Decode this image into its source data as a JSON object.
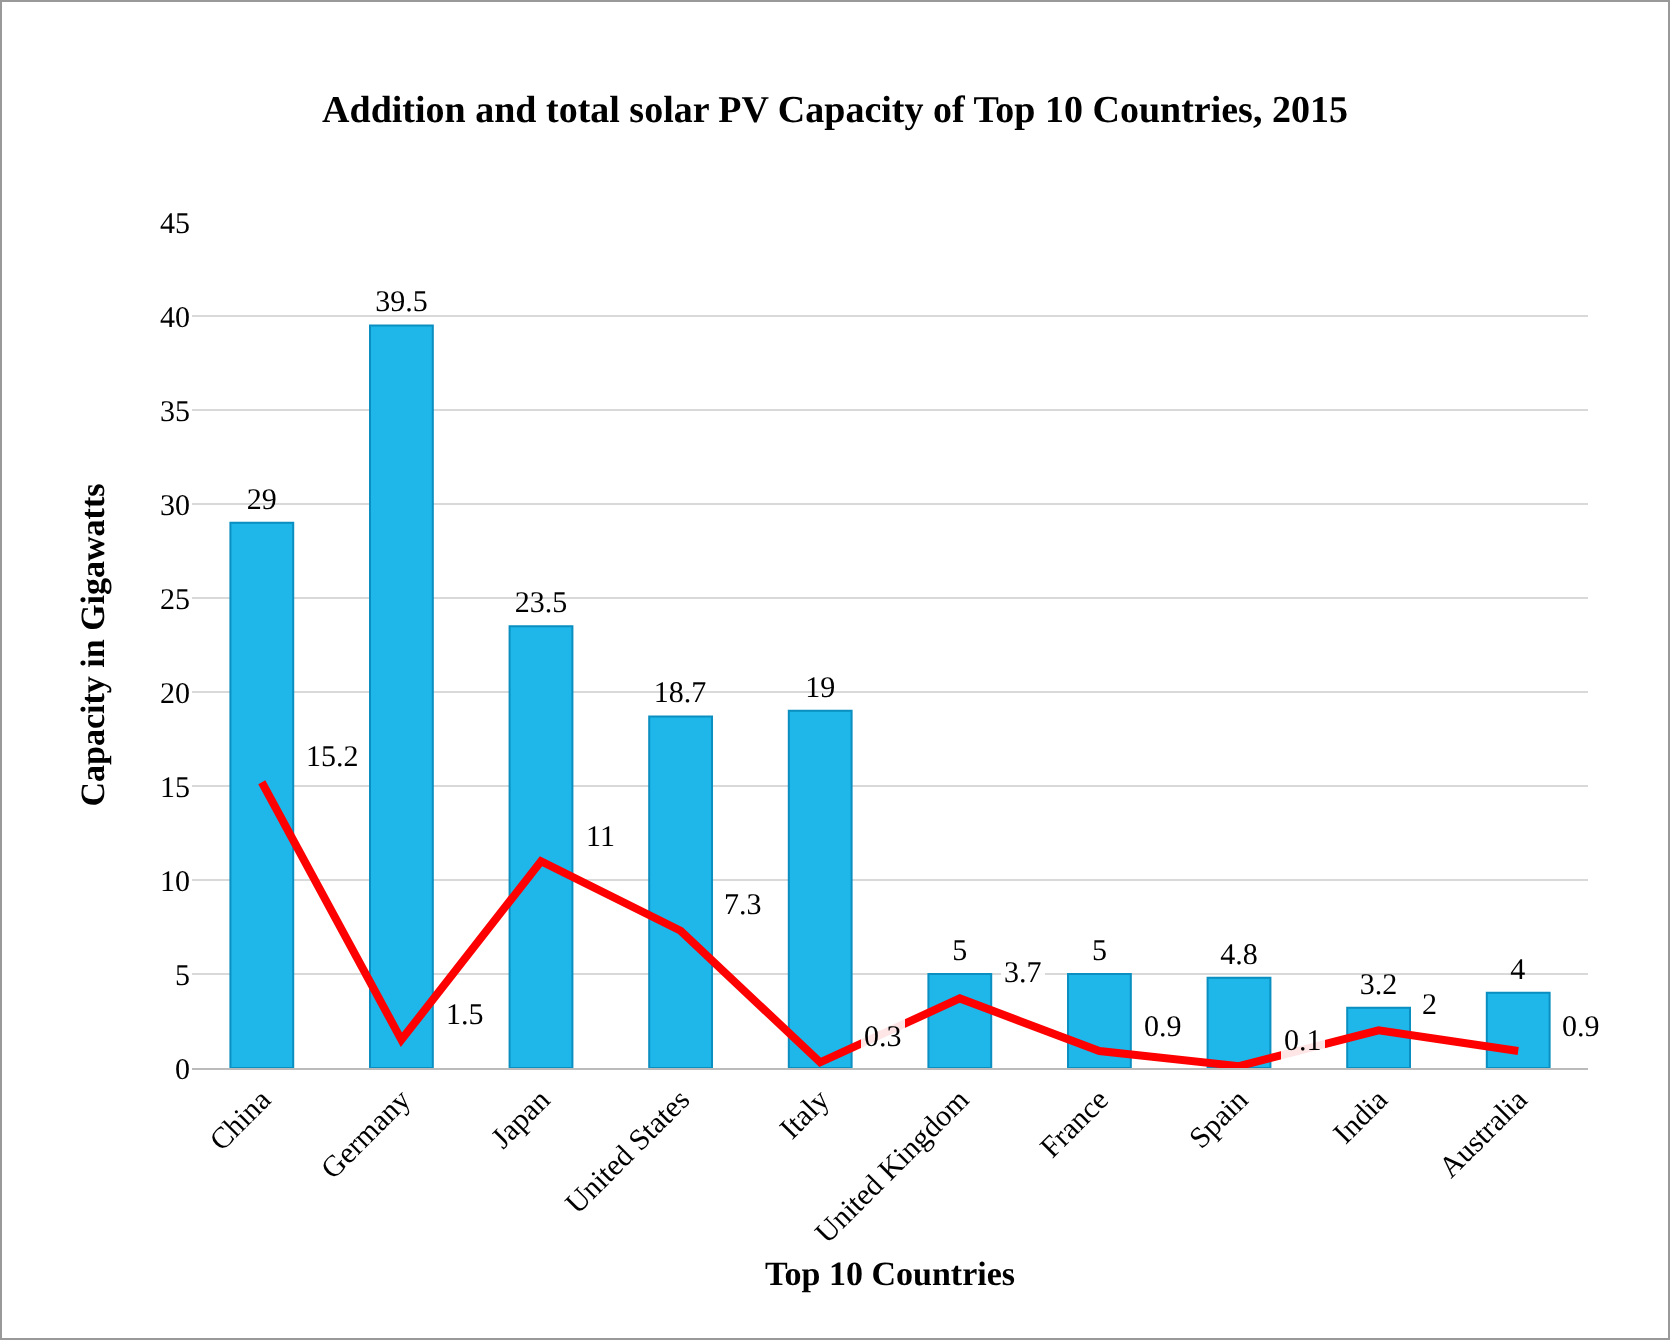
{
  "chart_data": {
    "type": "bar",
    "title": "Addition and total solar PV Capacity of Top 10 Countries, 2015",
    "xlabel": "Top 10 Countries",
    "ylabel": "Capacity in Gigawatts",
    "categories": [
      "China",
      "Germany",
      "Japan",
      "United States",
      "Italy",
      "United Kingdom",
      "France",
      "Spain",
      "India",
      "Australia"
    ],
    "series": [
      {
        "color": "#1fb6ea",
        "values": [
          29,
          39.5,
          23.5,
          18.7,
          19,
          5,
          5,
          4.8,
          3.2,
          4
        ]
      },
      {
        "type": "line",
        "color": "#ff0000",
        "values": [
          15.2,
          1.5,
          11,
          7.3,
          0.3,
          3.7,
          0.9,
          0.1,
          2,
          0.9
        ]
      }
    ],
    "ylim": [
      0,
      45
    ],
    "yticks": [
      0,
      5,
      10,
      15,
      20,
      25,
      30,
      35,
      40,
      45
    ],
    "grid": "y",
    "data_labels": true,
    "marker": "none",
    "line_style": "solid"
  }
}
